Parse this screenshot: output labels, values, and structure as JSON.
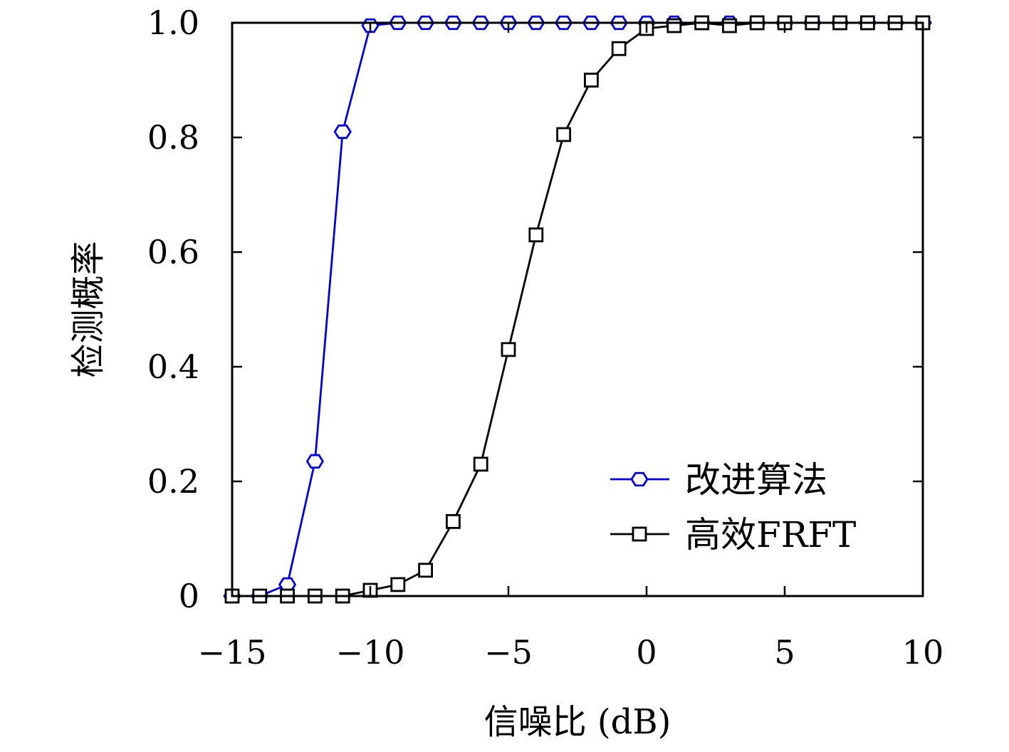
{
  "chart_data": {
    "type": "line",
    "xlabel": "信噪比 (dB)",
    "ylabel": "检测概率",
    "xlim": [
      -15,
      10
    ],
    "ylim": [
      0,
      1
    ],
    "xticks": [
      -15,
      -10,
      -5,
      0,
      5,
      10
    ],
    "xtick_labels": [
      "−15",
      "−10",
      "−5",
      "0",
      "5",
      "10"
    ],
    "yticks": [
      0,
      0.2,
      0.4,
      0.6,
      0.8,
      1.0
    ],
    "ytick_labels": [
      "0",
      "0.2",
      "0.4",
      "0.6",
      "0.8",
      "1.0"
    ],
    "grid": false,
    "legend_position": "lower-right",
    "series": [
      {
        "name": "改进算法",
        "color": "#0000dd",
        "marker": "hexagon",
        "x": [
          -15,
          -14,
          -13,
          -12,
          -11,
          -10,
          -9,
          -8,
          -7,
          -6,
          -5,
          -4,
          -3,
          -2,
          -1,
          0,
          1,
          2,
          3,
          4,
          5,
          6,
          7,
          8,
          9,
          10
        ],
        "y": [
          0,
          0,
          0.02,
          0.235,
          0.81,
          0.995,
          1,
          1,
          1,
          1,
          1,
          1,
          1,
          1,
          1,
          1,
          1,
          1,
          1,
          1,
          1,
          1,
          1,
          1,
          1,
          1
        ]
      },
      {
        "name": "高效FRFT",
        "color": "#000000",
        "marker": "square",
        "x": [
          -15,
          -14,
          -13,
          -12,
          -11,
          -10,
          -9,
          -8,
          -7,
          -6,
          -5,
          -4,
          -3,
          -2,
          -1,
          0,
          1,
          2,
          3,
          4,
          5,
          6,
          7,
          8,
          9,
          10
        ],
        "y": [
          0,
          0,
          0,
          0,
          0,
          0.01,
          0.02,
          0.045,
          0.13,
          0.23,
          0.43,
          0.63,
          0.805,
          0.9,
          0.955,
          0.99,
          0.995,
          1,
          0.995,
          1,
          1,
          1,
          1,
          1,
          1,
          1
        ]
      }
    ]
  }
}
